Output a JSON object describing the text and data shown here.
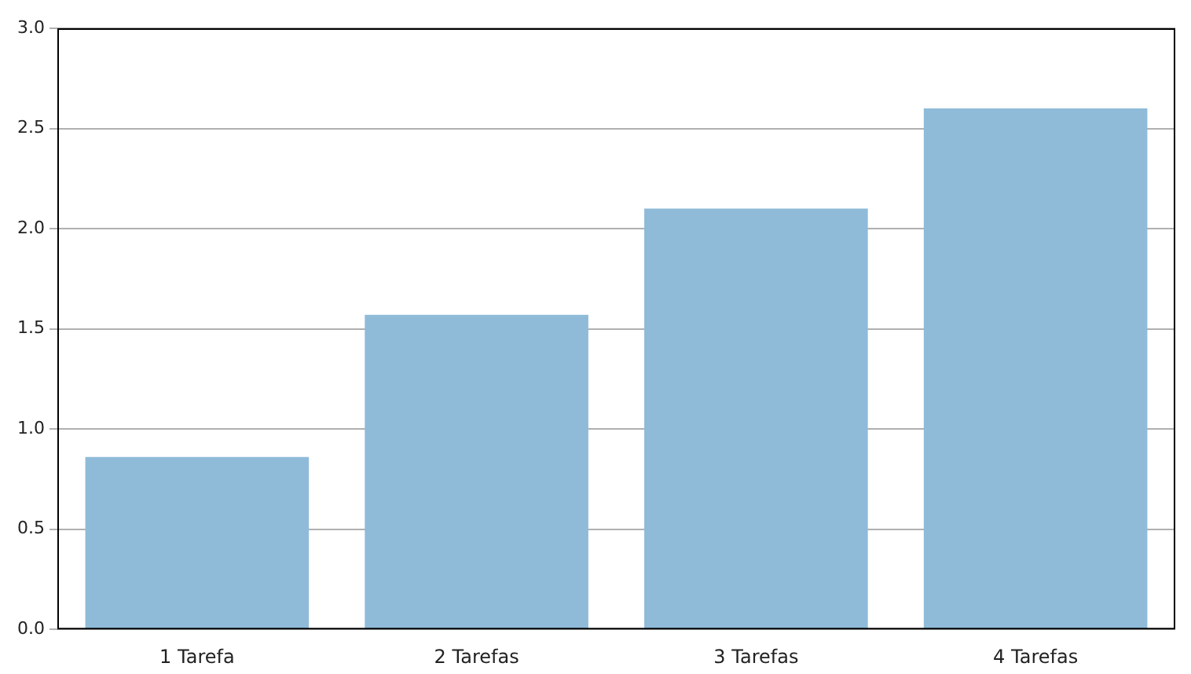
{
  "chart_data": {
    "type": "bar",
    "categories": [
      "1 Tarefa",
      "2 Tarefas",
      "3 Tarefas",
      "4 Tarefas"
    ],
    "values": [
      0.86,
      1.57,
      2.1,
      2.6
    ],
    "color": "#8fbbd9",
    "ylim": [
      0,
      3
    ],
    "yticks": [
      {
        "value": 0,
        "label": "0.0"
      },
      {
        "value": 0.5,
        "label": "0.5"
      },
      {
        "value": 1,
        "label": "1.0"
      },
      {
        "value": 1.5,
        "label": "1.5"
      },
      {
        "value": 2,
        "label": "2.0"
      },
      {
        "value": 2.5,
        "label": "2.5"
      },
      {
        "value": 3,
        "label": "3.0"
      }
    ],
    "grid": "y"
  }
}
